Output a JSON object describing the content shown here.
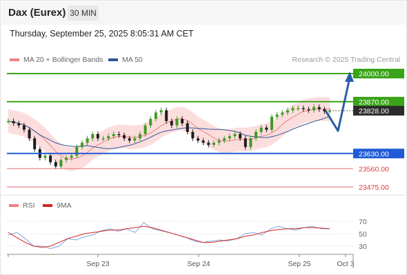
{
  "header": {
    "title": "Dax (Eurex)",
    "interval": "30 MIN",
    "timestamp": "Thursday, September 25, 2025 8:05:31 AM CET"
  },
  "legend": {
    "bollinger": {
      "label": "MA 20 + Bollinger Bands",
      "color": "#f08080"
    },
    "ma50": {
      "label": "MA 50",
      "color": "#2f5597"
    }
  },
  "credit": "Research © 2025 Trading Central",
  "rsi_legend": {
    "rsi": {
      "label": "RSI",
      "color": "#f08080"
    },
    "ma9": {
      "label": "9MA",
      "color": "#d62020"
    }
  },
  "colors": {
    "up": "#3f9b23",
    "down": "#1d1d1d",
    "band": "#fbd7d7",
    "green_level": "#3aa318",
    "blue_level": "#1f5bd6",
    "red_level": "#e87272",
    "arrow": "#2a5ea8"
  },
  "chart_data": {
    "type": "candlestick",
    "y_range": [
      23430,
      24060
    ],
    "levels": [
      {
        "value": "24000.00",
        "kind": "resistance",
        "color": "#3aa318"
      },
      {
        "value": "23870.00",
        "kind": "resistance",
        "color": "#3aa318"
      },
      {
        "value": "23828.00",
        "kind": "last",
        "color": "#2b2b2b"
      },
      {
        "value": "23630.00",
        "kind": "pivot",
        "color": "#1f5bd6"
      },
      {
        "value": "23560.00",
        "kind": "support",
        "color": "#e87272"
      },
      {
        "value": "23475.00",
        "kind": "support",
        "color": "#e87272"
      }
    ],
    "x_labels": [
      "Sep 23",
      "Sep 24",
      "Sep 25",
      "Oct 3"
    ],
    "scenario_path": [
      23828,
      23735,
      24000
    ],
    "price_points": [
      23780,
      23770,
      23760,
      23740,
      23700,
      23650,
      23610,
      23620,
      23590,
      23570,
      23600,
      23610,
      23620,
      23660,
      23680,
      23700,
      23720,
      23700,
      23700,
      23710,
      23720,
      23715,
      23700,
      23690,
      23700,
      23720,
      23760,
      23790,
      23820,
      23830,
      23780,
      23760,
      23790,
      23770,
      23730,
      23700,
      23690,
      23680,
      23670,
      23680,
      23690,
      23700,
      23710,
      23720,
      23700,
      23660,
      23700,
      23730,
      23750,
      23740,
      23800,
      23810,
      23820,
      23830,
      23840,
      23840,
      23835,
      23830,
      23845,
      23835,
      23825,
      23828
    ],
    "rsi_axis": [
      70,
      50,
      30
    ],
    "rsi_points": [
      48,
      52,
      42,
      30,
      30,
      26,
      30,
      42,
      40,
      45,
      48,
      55,
      58,
      54,
      58,
      52,
      68,
      58,
      55,
      52,
      48,
      44,
      38,
      36,
      38,
      40,
      38,
      42,
      50,
      52,
      48,
      58,
      62,
      58,
      56,
      60,
      62,
      58,
      58
    ],
    "rsi_ma_points": [
      52,
      44,
      36,
      30,
      28,
      30,
      36,
      42,
      46,
      50,
      52,
      54,
      56,
      56,
      58,
      60,
      62,
      60,
      56,
      52,
      48,
      44,
      40,
      36,
      36,
      38,
      40,
      42,
      46,
      48,
      52,
      55,
      57,
      58,
      58,
      60,
      60,
      59,
      58
    ]
  }
}
